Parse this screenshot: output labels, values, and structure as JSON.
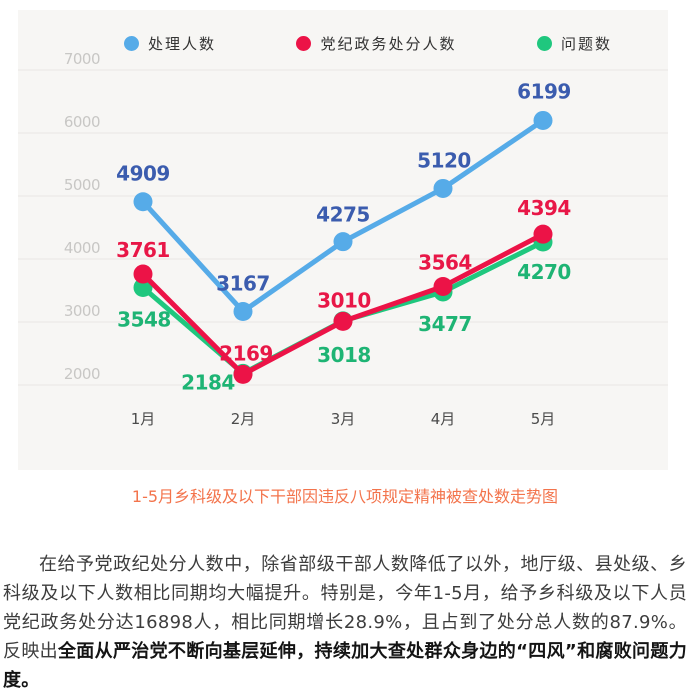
{
  "caption": "1-5月乡科级及以下干部因违反八项规定精神被查处数走势图",
  "caption_color": "#f3744c",
  "paragraph": {
    "normal_text": "在给予党政纪处分人数中，除省部级干部人数降低了以外，地厅级、县处级、乡科级及以下人数相比同期均大幅提升。特别是，今年1-5月，给予乡科级及以下人员党纪政务处分达16898人，相比同期增长28.9%，且占到了处分总人数的87.9%。反映出",
    "bold_text": "全面从严治党不断向基层延伸，持续加大查处群众身边的“四风”和腐败问题力度。"
  },
  "chart_data": {
    "type": "line",
    "title": "1-5月乡科级及以下干部因违反八项规定精神被查处数走势图",
    "categories": [
      "1月",
      "2月",
      "3月",
      "4月",
      "5月"
    ],
    "ylim": [
      2000,
      7000
    ],
    "y_ticks": [
      7000,
      6000,
      5000,
      4000,
      3000,
      2000
    ],
    "grid": true,
    "legend_position": "top",
    "axis_text_color": "#c8c7c5",
    "category_text_color": "#4b4b4b",
    "gridline_color": "#e8e7e4",
    "series": [
      {
        "name": "处理人数",
        "color": "#56abe8",
        "label_color": "#3b5cae",
        "values": [
          4909,
          3167,
          4275,
          5120,
          6199
        ],
        "label_offsets": [
          [
            0,
            -28
          ],
          [
            0,
            -28
          ],
          [
            0,
            -27
          ],
          [
            1,
            -28
          ],
          [
            1,
            -29
          ]
        ]
      },
      {
        "name": "党纪政务处分人数",
        "color": "#ec1347",
        "label_color": "#e81747",
        "values": [
          3761,
          2169,
          3010,
          3564,
          4394
        ],
        "label_offsets": [
          [
            0,
            -24
          ],
          [
            3,
            -21
          ],
          [
            1,
            -21
          ],
          [
            2,
            -24
          ],
          [
            1,
            -26
          ]
        ]
      },
      {
        "name": "问题数",
        "color": "#1fc77e",
        "label_color": "#1eb474",
        "values": [
          3548,
          2184,
          3018,
          3477,
          4270
        ],
        "label_offsets": [
          [
            1,
            32
          ],
          [
            -35,
            9
          ],
          [
            1,
            34
          ],
          [
            2,
            32
          ],
          [
            1,
            30
          ]
        ]
      }
    ]
  }
}
